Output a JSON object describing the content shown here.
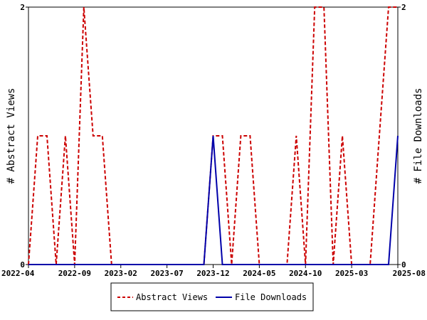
{
  "chart_data": {
    "type": "line",
    "title": "",
    "xlabel": "",
    "ylabel_left": "# Abstract Views",
    "ylabel_right": "# File Downloads",
    "x_tick_labels": [
      "2022-04",
      "2022-09",
      "2023-02",
      "2023-07",
      "2023-12",
      "2024-05",
      "2024-10",
      "2025-03",
      "2025-08"
    ],
    "x_range": [
      "2022-04",
      "2025-08"
    ],
    "y_left_range": [
      0,
      2
    ],
    "y_right_range": [
      0,
      2
    ],
    "y_left_ticks": [
      "0",
      "2"
    ],
    "y_right_ticks": [
      "0",
      "2"
    ],
    "grid": false,
    "legend_position": "bottom-center",
    "series": [
      {
        "name": "Abstract Views",
        "axis": "left",
        "color": "#cc0000",
        "style": "dashed",
        "x": [
          "2022-04",
          "2022-05",
          "2022-06",
          "2022-07",
          "2022-08",
          "2022-09",
          "2022-10",
          "2022-11",
          "2022-12",
          "2023-01",
          "2023-02",
          "2023-03",
          "2023-04",
          "2023-05",
          "2023-06",
          "2023-07",
          "2023-08",
          "2023-09",
          "2023-10",
          "2023-11",
          "2023-12",
          "2024-01",
          "2024-02",
          "2024-03",
          "2024-04",
          "2024-05",
          "2024-06",
          "2024-07",
          "2024-08",
          "2024-09",
          "2024-10",
          "2024-11",
          "2024-12",
          "2025-01",
          "2025-02",
          "2025-03",
          "2025-04",
          "2025-05",
          "2025-06",
          "2025-07",
          "2025-08"
        ],
        "y": [
          0,
          1,
          1,
          0,
          1,
          0,
          2,
          1,
          1,
          0,
          0,
          0,
          0,
          0,
          0,
          0,
          0,
          0,
          0,
          0,
          1,
          1,
          0,
          1,
          1,
          0,
          0,
          0,
          0,
          1,
          0,
          2,
          2,
          0,
          1,
          0,
          0,
          0,
          1,
          2,
          2
        ]
      },
      {
        "name": "File Downloads",
        "axis": "right",
        "color": "#0000aa",
        "style": "solid",
        "x": [
          "2022-04",
          "2022-05",
          "2022-06",
          "2022-07",
          "2022-08",
          "2022-09",
          "2022-10",
          "2022-11",
          "2022-12",
          "2023-01",
          "2023-02",
          "2023-03",
          "2023-04",
          "2023-05",
          "2023-06",
          "2023-07",
          "2023-08",
          "2023-09",
          "2023-10",
          "2023-11",
          "2023-12",
          "2024-01",
          "2024-02",
          "2024-03",
          "2024-04",
          "2024-05",
          "2024-06",
          "2024-07",
          "2024-08",
          "2024-09",
          "2024-10",
          "2024-11",
          "2024-12",
          "2025-01",
          "2025-02",
          "2025-03",
          "2025-04",
          "2025-05",
          "2025-06",
          "2025-07",
          "2025-08"
        ],
        "y": [
          0,
          0,
          0,
          0,
          0,
          0,
          0,
          0,
          0,
          0,
          0,
          0,
          0,
          0,
          0,
          0,
          0,
          0,
          0,
          0,
          1,
          0,
          0,
          0,
          0,
          0,
          0,
          0,
          0,
          0,
          0,
          0,
          0,
          0,
          0,
          0,
          0,
          0,
          0,
          0,
          1
        ]
      }
    ]
  }
}
